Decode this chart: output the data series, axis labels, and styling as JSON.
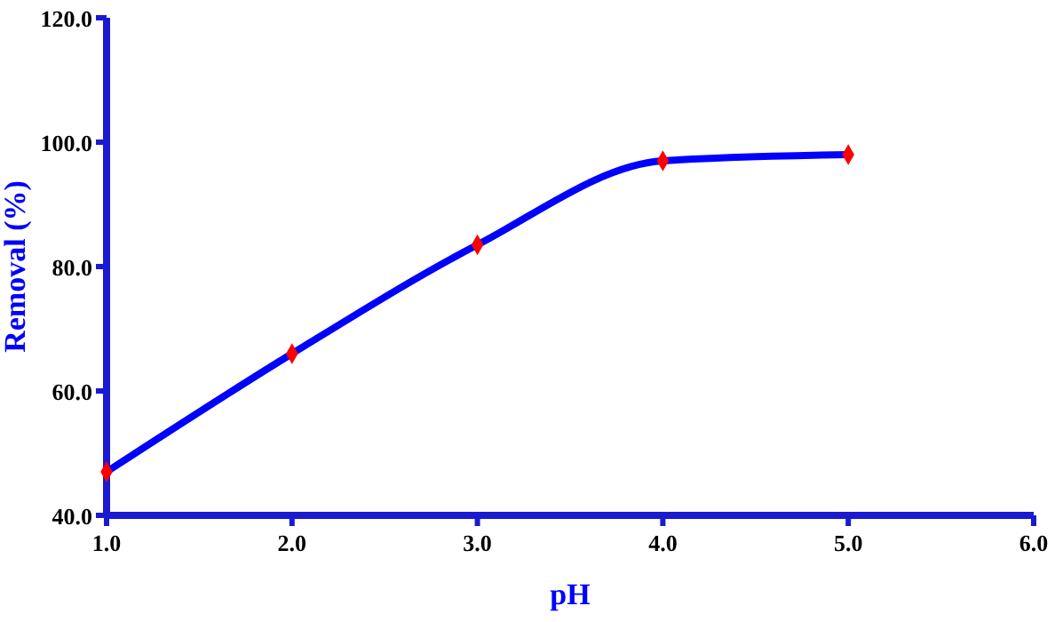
{
  "chart_data": {
    "type": "line",
    "xlabel": "pH",
    "ylabel": "Removal (%)",
    "x": [
      1,
      2,
      3,
      4,
      5
    ],
    "series": [
      {
        "color": "#0000ff",
        "colors": [
          "#ff0000",
          "#ff0000",
          "#ff0000",
          "#ff0000",
          "#ff0000"
        ],
        "values": [
          47,
          66,
          83.5,
          97,
          98
        ]
      }
    ],
    "xlim": [
      1,
      6
    ],
    "xticks": [
      {
        "value": 1,
        "label": "1.0"
      },
      {
        "value": 2,
        "label": "2.0"
      },
      {
        "value": 3,
        "label": "3.0"
      },
      {
        "value": 4,
        "label": "4.0"
      },
      {
        "value": 5,
        "label": "5.0"
      },
      {
        "value": 6,
        "label": "6.0"
      }
    ],
    "ylim": [
      40,
      120
    ],
    "yticks": [
      {
        "value": 40,
        "label": "40.0"
      },
      {
        "value": 60,
        "label": "60.0"
      },
      {
        "value": 80,
        "label": "80.0"
      },
      {
        "value": 100,
        "label": "100.0"
      },
      {
        "value": 120,
        "label": "120.0"
      }
    ],
    "grid": false,
    "marker": "diamond",
    "line_style": "solid"
  }
}
